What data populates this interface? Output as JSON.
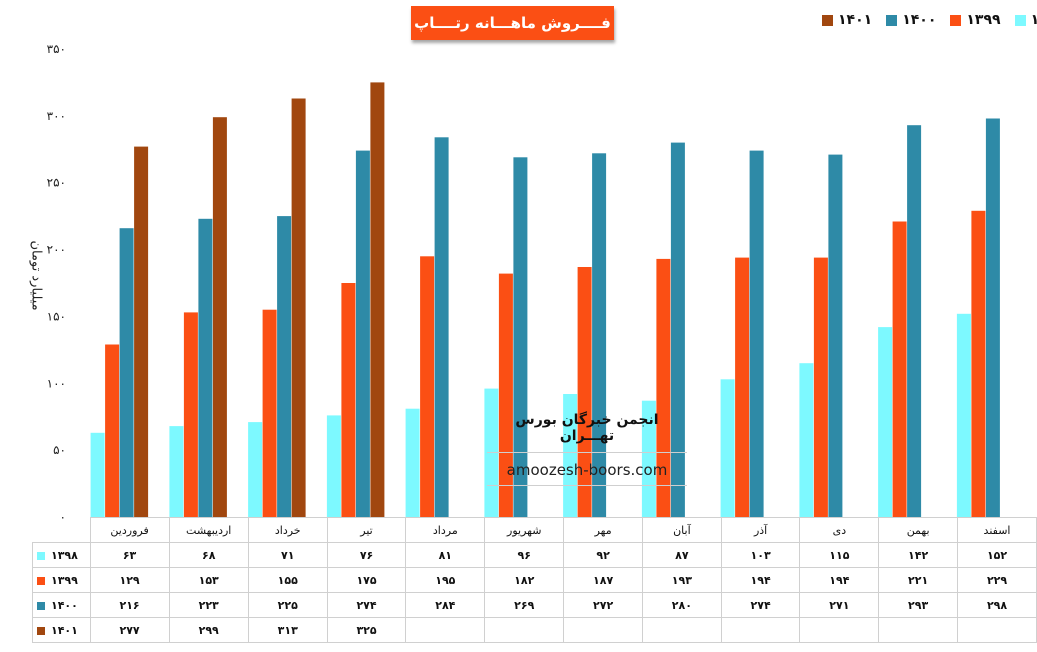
{
  "chart_data": {
    "type": "bar",
    "title": "فــــروش ماهـــانه رتــــاپ",
    "ylabel": "میلیارد تومان",
    "ylim": [
      0,
      350
    ],
    "yticks": [
      "۰",
      "۵۰",
      "۱۰۰",
      "۱۵۰",
      "۲۰۰",
      "۲۵۰",
      "۳۰۰",
      "۳۵۰"
    ],
    "ytick_values": [
      0,
      50,
      100,
      150,
      200,
      250,
      300,
      350
    ],
    "grid": false,
    "legend_position": "top-right",
    "categories": [
      "فروردین",
      "اردیبهشت",
      "خرداد",
      "تیر",
      "مرداد",
      "شهریور",
      "مهر",
      "آبان",
      "آذر",
      "دی",
      "بهمن",
      "اسفند"
    ],
    "series": [
      {
        "name": "۱۳۹۸",
        "color": "#7df9ff",
        "values": [
          63,
          68,
          71,
          76,
          81,
          96,
          92,
          87,
          103,
          115,
          142,
          152
        ],
        "labels": [
          "۶۳",
          "۶۸",
          "۷۱",
          "۷۶",
          "۸۱",
          "۹۶",
          "۹۲",
          "۸۷",
          "۱۰۳",
          "۱۱۵",
          "۱۴۲",
          "۱۵۲"
        ]
      },
      {
        "name": "۱۳۹۹",
        "color": "#fb4f14",
        "values": [
          129,
          153,
          155,
          175,
          195,
          182,
          187,
          193,
          194,
          194,
          221,
          229
        ],
        "labels": [
          "۱۲۹",
          "۱۵۳",
          "۱۵۵",
          "۱۷۵",
          "۱۹۵",
          "۱۸۲",
          "۱۸۷",
          "۱۹۳",
          "۱۹۴",
          "۱۹۴",
          "۲۲۱",
          "۲۲۹"
        ]
      },
      {
        "name": "۱۴۰۰",
        "color": "#2e8aa7",
        "values": [
          216,
          223,
          225,
          274,
          284,
          269,
          272,
          280,
          274,
          271,
          293,
          298
        ],
        "labels": [
          "۲۱۶",
          "۲۲۳",
          "۲۲۵",
          "۲۷۴",
          "۲۸۴",
          "۲۶۹",
          "۲۷۲",
          "۲۸۰",
          "۲۷۴",
          "۲۷۱",
          "۲۹۳",
          "۲۹۸"
        ]
      },
      {
        "name": "۱۴۰۱",
        "color": "#a1470f",
        "values": [
          277,
          299,
          313,
          325,
          null,
          null,
          null,
          null,
          null,
          null,
          null,
          null
        ],
        "labels": [
          "۲۷۷",
          "۲۹۹",
          "۳۱۳",
          "۳۲۵",
          "",
          "",
          "",
          "",
          "",
          "",
          "",
          ""
        ]
      }
    ]
  },
  "watermark": {
    "line1": "انجمن خبرگان بورس تهـــران",
    "line2": "amoozesh-boors.com"
  }
}
